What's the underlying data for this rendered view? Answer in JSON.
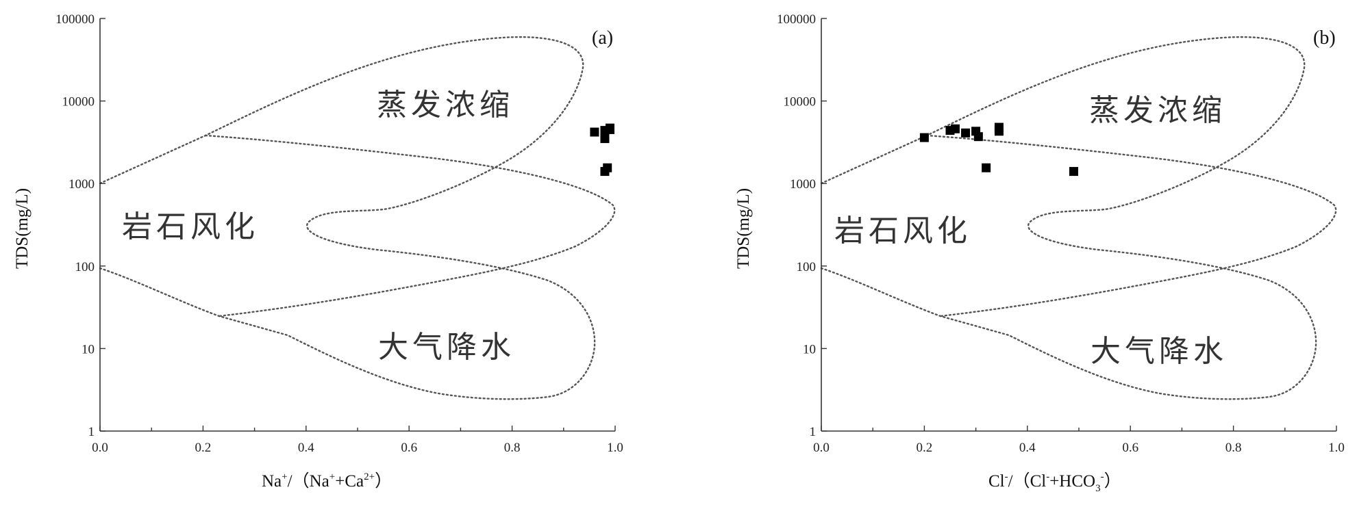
{
  "chart_data": [
    {
      "type": "scatter",
      "panel_label": "(a)",
      "xlabel_parts": {
        "base": "Na",
        "sup1": "+",
        "slash": "/（",
        "ion1": "Na",
        "sup2": "+",
        "plus": "+",
        "ion2": "Ca",
        "sup3": "2+",
        "close": "）"
      },
      "ylabel": "TDS(mg/L)",
      "xlim": [
        0,
        1
      ],
      "ylim": [
        1,
        100000
      ],
      "yscale": "log",
      "x_ticks": [
        "0.0",
        "0.2",
        "0.4",
        "0.6",
        "0.8",
        "1.0"
      ],
      "y_ticks": [
        "1",
        "10",
        "100",
        "1000",
        "10000",
        "100000"
      ],
      "regions": [
        "蒸发浓缩",
        "岩石风化",
        "大气降水"
      ],
      "points": [
        {
          "x": 0.96,
          "y": 4200
        },
        {
          "x": 0.98,
          "y": 4400
        },
        {
          "x": 0.99,
          "y": 4500
        },
        {
          "x": 0.98,
          "y": 3500
        },
        {
          "x": 0.99,
          "y": 4700
        },
        {
          "x": 0.985,
          "y": 1550
        },
        {
          "x": 0.98,
          "y": 1400
        }
      ]
    },
    {
      "type": "scatter",
      "panel_label": "(b)",
      "xlabel_parts": {
        "base": "Cl",
        "sup1": "-",
        "slash": "/（",
        "ion1": "Cl",
        "sup2": "-",
        "plus": "+HCO",
        "sub": "3",
        "sup3": "-",
        "close": "）"
      },
      "ylabel": "TDS(mg/L)",
      "xlim": [
        0,
        1
      ],
      "ylim": [
        1,
        100000
      ],
      "yscale": "log",
      "x_ticks": [
        "0.0",
        "0.2",
        "0.4",
        "0.6",
        "0.8",
        "1.0"
      ],
      "y_ticks": [
        "1",
        "10",
        "100",
        "1000",
        "10000",
        "100000"
      ],
      "regions": [
        "蒸发浓缩",
        "岩石风化",
        "大气降水"
      ],
      "points": [
        {
          "x": 0.2,
          "y": 3600
        },
        {
          "x": 0.25,
          "y": 4400
        },
        {
          "x": 0.26,
          "y": 4600
        },
        {
          "x": 0.28,
          "y": 4100
        },
        {
          "x": 0.3,
          "y": 4300
        },
        {
          "x": 0.305,
          "y": 3700
        },
        {
          "x": 0.345,
          "y": 4300
        },
        {
          "x": 0.345,
          "y": 4800
        },
        {
          "x": 0.32,
          "y": 1550
        },
        {
          "x": 0.49,
          "y": 1400
        }
      ]
    }
  ]
}
